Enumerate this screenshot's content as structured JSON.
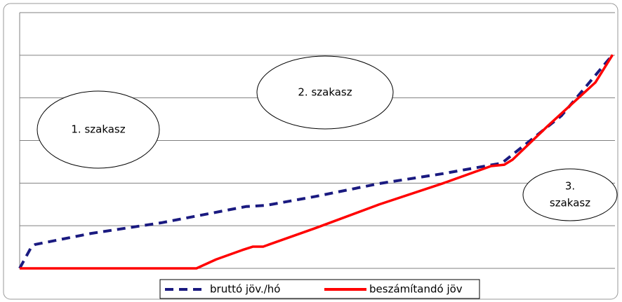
{
  "chart_data": {
    "type": "line",
    "annotations": [
      "1. szakasz",
      "2. szakasz",
      [
        "3.",
        "szakasz"
      ]
    ],
    "xlim": [
      0,
      100
    ],
    "ylim": [
      0,
      6
    ],
    "yticks": [
      0,
      1,
      2,
      3,
      4,
      5,
      6
    ],
    "grid": true,
    "legend": "bottom",
    "series": [
      {
        "name": "bruttó jöv./hó",
        "color": "#1a1a80",
        "dash": true,
        "x": [
          0,
          2.0,
          2.6,
          12,
          23.8,
          38,
          41.5,
          49.8,
          60.4,
          71,
          81,
          91,
          99.6
        ],
        "values": [
          0,
          0.51,
          0.56,
          0.82,
          1.07,
          1.45,
          1.48,
          1.69,
          1.99,
          2.22,
          2.47,
          3.58,
          5.01
        ]
      },
      {
        "name": "beszámítandó jöv",
        "color": "#ff0000",
        "dash": false,
        "x": [
          0,
          29.7,
          33,
          37.4,
          39.2,
          40.9,
          49.8,
          60.4,
          71,
          79.2,
          81.4,
          82.8,
          88.7,
          96.7,
          99.6
        ],
        "values": [
          0,
          0,
          0.21,
          0.43,
          0.51,
          0.51,
          0.95,
          1.5,
          1.99,
          2.4,
          2.43,
          2.55,
          3.34,
          4.36,
          5.01
        ]
      }
    ]
  }
}
